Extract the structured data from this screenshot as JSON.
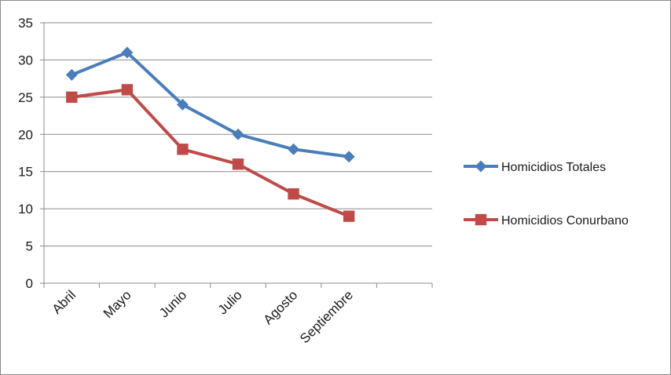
{
  "chart_data": {
    "type": "line",
    "title": "",
    "xlabel": "",
    "ylabel": "",
    "categories": [
      "Abril",
      "Mayo",
      "Junio",
      "Julio",
      "Agosto",
      "Septiembre"
    ],
    "ylim": [
      0,
      35
    ],
    "yticks": [
      0,
      5,
      10,
      15,
      20,
      25,
      30,
      35
    ],
    "grid": "horizontal",
    "legend_position": "right",
    "series": [
      {
        "name": "Homicidios Totales",
        "values": [
          28,
          31,
          24,
          20,
          18,
          17
        ],
        "color": "#4a7ebb",
        "marker": "diamond"
      },
      {
        "name": "Homicidios Conurbano",
        "values": [
          25,
          26,
          18,
          16,
          12,
          9
        ],
        "color": "#be4b48",
        "marker": "square"
      }
    ]
  }
}
